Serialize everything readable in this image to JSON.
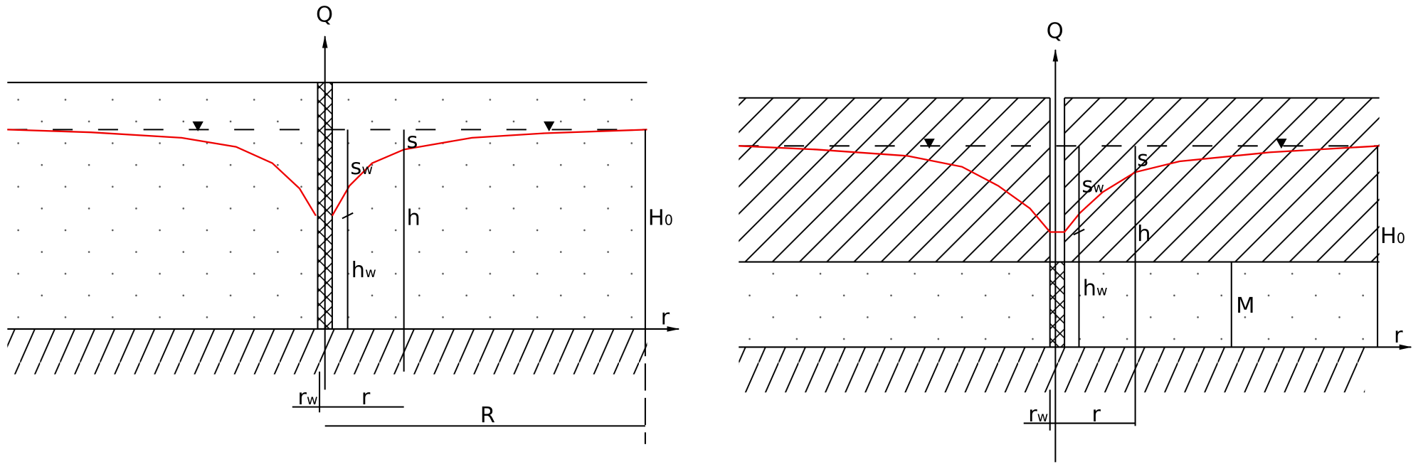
{
  "left": {
    "Q": "Q",
    "sw": {
      "base": "s",
      "sub": "w"
    },
    "s": "s",
    "h": "h",
    "H0": {
      "base": "H",
      "sub": "0"
    },
    "hw": {
      "base": "h",
      "sub": "w"
    },
    "r_axis": "r",
    "rw": {
      "base": "r",
      "sub": "w"
    },
    "r": "r",
    "R": "R"
  },
  "right": {
    "Q": "Q",
    "sw": {
      "base": "s",
      "sub": "w"
    },
    "s": "s",
    "h": "h",
    "H0": {
      "base": "H",
      "sub": "0"
    },
    "hw": {
      "base": "h",
      "sub": "w"
    },
    "M": "M",
    "r_axis": "r",
    "rw": {
      "base": "r",
      "sub": "w"
    },
    "r": "r"
  }
}
